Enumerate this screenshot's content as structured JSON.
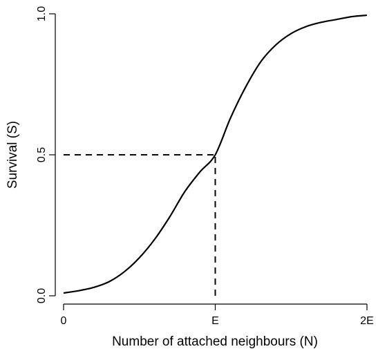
{
  "chart_data": {
    "type": "line",
    "xlabel": "Number of attached neighbours (N)",
    "ylabel": "Survival (S)",
    "xlim": [
      0,
      2
    ],
    "ylim": [
      0,
      1
    ],
    "x_ticks": [
      {
        "value": 0,
        "label": "0"
      },
      {
        "value": 1,
        "label": "E"
      },
      {
        "value": 2,
        "label": "2E"
      }
    ],
    "y_ticks": [
      {
        "value": 0,
        "label": "0.0"
      },
      {
        "value": 0.5,
        "label": "0.5"
      },
      {
        "value": 1,
        "label": "1.0"
      }
    ],
    "series": [
      {
        "x": [
          0,
          0.1,
          0.2,
          0.3,
          0.4,
          0.5,
          0.6,
          0.7,
          0.8,
          0.9,
          1.0,
          1.1,
          1.2,
          1.3,
          1.4,
          1.5,
          1.6,
          1.7,
          1.8,
          1.9,
          2.0
        ],
        "y": [
          0.01,
          0.018,
          0.03,
          0.05,
          0.085,
          0.135,
          0.2,
          0.28,
          0.37,
          0.44,
          0.5,
          0.63,
          0.74,
          0.83,
          0.89,
          0.93,
          0.955,
          0.97,
          0.98,
          0.99,
          0.995
        ]
      }
    ],
    "reference_lines": [
      {
        "type": "horizontal",
        "y": 0.5,
        "x_from": 0,
        "x_to": 1,
        "style": "dashed"
      },
      {
        "type": "vertical",
        "x": 1,
        "y_from": 0,
        "y_to": 0.5,
        "style": "dashed"
      }
    ],
    "grid": false,
    "legend": "none"
  }
}
